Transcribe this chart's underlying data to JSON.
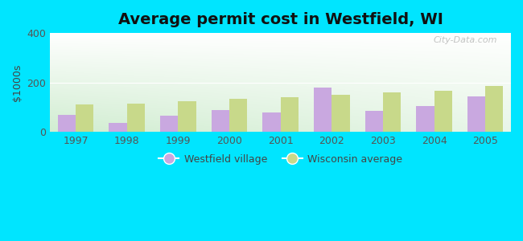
{
  "title": "Average permit cost in Westfield, WI",
  "ylabel": "$1000s",
  "years": [
    1997,
    1998,
    1999,
    2000,
    2001,
    2002,
    2003,
    2004,
    2005
  ],
  "westfield": [
    70,
    35,
    65,
    90,
    80,
    180,
    85,
    105,
    145
  ],
  "wisconsin": [
    110,
    115,
    125,
    135,
    140,
    150,
    160,
    165,
    185
  ],
  "westfield_color": "#c9a8e0",
  "wisconsin_color": "#c8d98a",
  "background_outer": "#00e5ff",
  "bg_gradient_bottom": "#c8e6c0",
  "bg_gradient_top": "#f5fff8",
  "bg_gradient_right": "#e8f0ff",
  "ylim": [
    0,
    400
  ],
  "yticks": [
    0,
    200,
    400
  ],
  "bar_width": 0.35,
  "title_fontsize": 14,
  "axis_label_fontsize": 9,
  "tick_fontsize": 9,
  "legend_label_westfield": "Westfield village",
  "legend_label_wisconsin": "Wisconsin average",
  "watermark": "City-Data.com"
}
